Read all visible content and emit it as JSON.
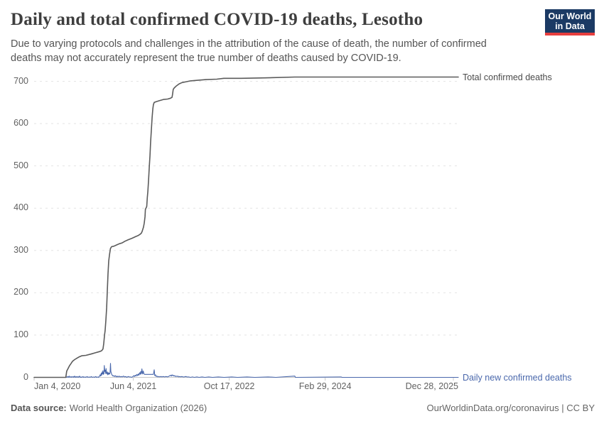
{
  "header": {
    "title": "Daily and total confirmed COVID-19 deaths, Lesotho",
    "subtitle_lines": [
      "Due to varying protocols and challenges in the attribution of the cause of death, the number of confirmed",
      "deaths may not accurately represent the true number of deaths caused by COVID-19."
    ],
    "logo": {
      "line1": "Our World",
      "line2": "in Data",
      "bg_color": "#1b3a64",
      "stripe_color": "#e63e3e"
    }
  },
  "footer": {
    "source_label": "Data source:",
    "source_value": "World Health Organization (2026)",
    "credit": "OurWorldinData.org/coronavirus | CC BY"
  },
  "chart_data": {
    "type": "line",
    "title": "Daily and total confirmed COVID-19 deaths, Lesotho",
    "xlabel": "",
    "ylabel": "",
    "ylim": [
      0,
      700
    ],
    "grid": "dashed-horizontal",
    "legend_position": "right-of-line-ends",
    "x_base_date": "2020-01-04",
    "x_end_date": "2026-01-23",
    "y_ticks": [
      0,
      100,
      200,
      300,
      400,
      500,
      600,
      700
    ],
    "x_ticks": [
      {
        "label": "Jan 4, 2020",
        "date": "2020-01-04",
        "align": "left"
      },
      {
        "label": "Jun 4, 2021",
        "date": "2021-06-04",
        "align": "center"
      },
      {
        "label": "Oct 17, 2022",
        "date": "2022-10-17",
        "align": "center"
      },
      {
        "label": "Feb 29, 2024",
        "date": "2024-02-29",
        "align": "center"
      },
      {
        "label": "Dec 28, 2025",
        "date": "2025-12-28",
        "align": "right"
      }
    ],
    "series": [
      {
        "name": "Total confirmed deaths",
        "color": "#5b5b5b",
        "points": [
          [
            "2020-01-04",
            0
          ],
          [
            "2020-06-17",
            0
          ],
          [
            "2020-06-22",
            15
          ],
          [
            "2020-06-28",
            20
          ],
          [
            "2020-07-07",
            28
          ],
          [
            "2020-07-15",
            33
          ],
          [
            "2020-07-22",
            38
          ],
          [
            "2020-08-02",
            42
          ],
          [
            "2020-08-13",
            45
          ],
          [
            "2020-08-24",
            48
          ],
          [
            "2020-09-08",
            51
          ],
          [
            "2020-09-30",
            52
          ],
          [
            "2020-10-26",
            55
          ],
          [
            "2020-11-18",
            58
          ],
          [
            "2020-12-10",
            61
          ],
          [
            "2020-12-21",
            63
          ],
          [
            "2020-12-28",
            67
          ],
          [
            "2021-01-01",
            80
          ],
          [
            "2021-01-05",
            100
          ],
          [
            "2021-01-08",
            110
          ],
          [
            "2021-01-12",
            135
          ],
          [
            "2021-01-16",
            165
          ],
          [
            "2021-01-19",
            200
          ],
          [
            "2021-01-23",
            245
          ],
          [
            "2021-01-27",
            275
          ],
          [
            "2021-01-31",
            290
          ],
          [
            "2021-02-05",
            305
          ],
          [
            "2021-02-11",
            309
          ],
          [
            "2021-02-22",
            310
          ],
          [
            "2021-03-09",
            313
          ],
          [
            "2021-03-23",
            316
          ],
          [
            "2021-04-07",
            318
          ],
          [
            "2021-04-22",
            322
          ],
          [
            "2021-05-07",
            325
          ],
          [
            "2021-05-29",
            329
          ],
          [
            "2021-06-17",
            333
          ],
          [
            "2021-06-28",
            335
          ],
          [
            "2021-07-09",
            338
          ],
          [
            "2021-07-16",
            341
          ],
          [
            "2021-07-20",
            345
          ],
          [
            "2021-07-27",
            355
          ],
          [
            "2021-07-31",
            365
          ],
          [
            "2021-08-04",
            380
          ],
          [
            "2021-08-06",
            397
          ],
          [
            "2021-08-10",
            401
          ],
          [
            "2021-08-13",
            404
          ],
          [
            "2021-08-16",
            425
          ],
          [
            "2021-08-19",
            440
          ],
          [
            "2021-08-23",
            470
          ],
          [
            "2021-08-26",
            495
          ],
          [
            "2021-08-30",
            525
          ],
          [
            "2021-09-02",
            555
          ],
          [
            "2021-09-06",
            585
          ],
          [
            "2021-09-10",
            615
          ],
          [
            "2021-09-14",
            635
          ],
          [
            "2021-09-17",
            645
          ],
          [
            "2021-09-21",
            650
          ],
          [
            "2021-10-02",
            652
          ],
          [
            "2021-10-17",
            654
          ],
          [
            "2021-11-08",
            657
          ],
          [
            "2021-11-30",
            658
          ],
          [
            "2021-12-15",
            660
          ],
          [
            "2021-12-23",
            662
          ],
          [
            "2021-12-26",
            670
          ],
          [
            "2021-12-29",
            681
          ],
          [
            "2022-01-03",
            684
          ],
          [
            "2022-01-14",
            689
          ],
          [
            "2022-01-29",
            694
          ],
          [
            "2022-02-13",
            697
          ],
          [
            "2022-03-07",
            699
          ],
          [
            "2022-03-29",
            701
          ],
          [
            "2022-04-24",
            702
          ],
          [
            "2022-06-18",
            704
          ],
          [
            "2022-08-13",
            705
          ],
          [
            "2022-09-19",
            707
          ],
          [
            "2022-12-19",
            707
          ],
          [
            "2023-04-18",
            708
          ],
          [
            "2023-09-24",
            710
          ],
          [
            "2024-02-12",
            710
          ],
          [
            "2024-12-08",
            710
          ],
          [
            "2025-10-04",
            710
          ],
          [
            "2026-01-23",
            710
          ]
        ]
      },
      {
        "name": "Daily new confirmed deaths",
        "color": "#4a68ac",
        "points": [
          [
            "2020-01-04",
            0
          ],
          [
            "2020-06-18",
            0
          ],
          [
            "2020-06-20",
            1
          ],
          [
            "2020-06-22",
            0
          ],
          [
            "2020-06-27",
            2
          ],
          [
            "2020-06-30",
            0
          ],
          [
            "2020-07-05",
            3
          ],
          [
            "2020-07-08",
            0
          ],
          [
            "2020-07-12",
            1
          ],
          [
            "2020-07-15",
            2
          ],
          [
            "2020-07-18",
            0
          ],
          [
            "2020-07-25",
            2
          ],
          [
            "2020-07-28",
            0
          ],
          [
            "2020-08-02",
            3
          ],
          [
            "2020-08-05",
            0
          ],
          [
            "2020-08-11",
            2
          ],
          [
            "2020-08-14",
            0
          ],
          [
            "2020-08-19",
            2
          ],
          [
            "2020-08-22",
            0
          ],
          [
            "2020-08-28",
            3
          ],
          [
            "2020-08-31",
            0
          ],
          [
            "2020-09-05",
            1
          ],
          [
            "2020-09-08",
            0
          ],
          [
            "2020-09-15",
            2
          ],
          [
            "2020-09-18",
            0
          ],
          [
            "2020-09-26",
            1
          ],
          [
            "2020-09-29",
            0
          ],
          [
            "2020-10-07",
            2
          ],
          [
            "2020-10-10",
            0
          ],
          [
            "2020-10-18",
            1
          ],
          [
            "2020-10-21",
            0
          ],
          [
            "2020-10-29",
            2
          ],
          [
            "2020-11-01",
            0
          ],
          [
            "2020-11-10",
            1
          ],
          [
            "2020-11-13",
            0
          ],
          [
            "2020-11-21",
            2
          ],
          [
            "2020-11-24",
            0
          ],
          [
            "2020-12-02",
            1
          ],
          [
            "2020-12-05",
            0
          ],
          [
            "2020-12-10",
            3
          ],
          [
            "2020-12-13",
            6
          ],
          [
            "2020-12-16",
            3
          ],
          [
            "2020-12-19",
            10
          ],
          [
            "2020-12-21",
            5
          ],
          [
            "2020-12-24",
            13
          ],
          [
            "2020-12-26",
            8
          ],
          [
            "2020-12-28",
            16
          ],
          [
            "2020-12-30",
            7
          ],
          [
            "2021-01-02",
            9
          ],
          [
            "2021-01-04",
            28
          ],
          [
            "2021-01-06",
            14
          ],
          [
            "2021-01-09",
            17
          ],
          [
            "2021-01-11",
            9
          ],
          [
            "2021-01-13",
            21
          ],
          [
            "2021-01-15",
            11
          ],
          [
            "2021-01-17",
            8
          ],
          [
            "2021-01-20",
            13
          ],
          [
            "2021-01-22",
            6
          ],
          [
            "2021-01-25",
            11
          ],
          [
            "2021-01-27",
            7
          ],
          [
            "2021-01-29",
            10
          ],
          [
            "2021-02-01",
            8
          ],
          [
            "2021-02-03",
            12
          ],
          [
            "2021-02-05",
            33
          ],
          [
            "2021-02-07",
            14
          ],
          [
            "2021-02-10",
            9
          ],
          [
            "2021-02-12",
            6
          ],
          [
            "2021-02-15",
            5
          ],
          [
            "2021-02-18",
            3
          ],
          [
            "2021-02-22",
            4
          ],
          [
            "2021-02-26",
            2
          ],
          [
            "2021-03-03",
            4
          ],
          [
            "2021-03-07",
            1
          ],
          [
            "2021-03-12",
            3
          ],
          [
            "2021-03-16",
            1
          ],
          [
            "2021-03-22",
            3
          ],
          [
            "2021-03-27",
            1
          ],
          [
            "2021-04-02",
            2
          ],
          [
            "2021-04-07",
            1
          ],
          [
            "2021-04-14",
            3
          ],
          [
            "2021-04-19",
            1
          ],
          [
            "2021-04-26",
            2
          ],
          [
            "2021-05-01",
            0
          ],
          [
            "2021-05-08",
            2
          ],
          [
            "2021-05-14",
            1
          ],
          [
            "2021-05-21",
            1
          ],
          [
            "2021-05-26",
            0
          ],
          [
            "2021-06-02",
            2
          ],
          [
            "2021-06-06",
            4
          ],
          [
            "2021-06-10",
            2
          ],
          [
            "2021-06-14",
            5
          ],
          [
            "2021-06-18",
            3
          ],
          [
            "2021-06-22",
            7
          ],
          [
            "2021-06-26",
            4
          ],
          [
            "2021-06-30",
            8
          ],
          [
            "2021-07-03",
            5
          ],
          [
            "2021-07-07",
            11
          ],
          [
            "2021-07-10",
            7
          ],
          [
            "2021-07-13",
            14
          ],
          [
            "2021-07-16",
            8
          ],
          [
            "2021-07-19",
            20
          ],
          [
            "2021-07-21",
            12
          ],
          [
            "2021-07-23",
            8
          ],
          [
            "2021-07-26",
            15
          ],
          [
            "2021-07-29",
            9
          ],
          [
            "2021-08-01",
            7
          ],
          [
            "2021-08-08",
            7
          ],
          [
            "2021-08-15",
            7
          ],
          [
            "2021-08-22",
            7
          ],
          [
            "2021-08-29",
            7
          ],
          [
            "2021-09-05",
            7
          ],
          [
            "2021-09-12",
            7
          ],
          [
            "2021-09-17",
            7
          ],
          [
            "2021-09-21",
            18
          ],
          [
            "2021-09-24",
            4
          ],
          [
            "2021-09-28",
            6
          ],
          [
            "2021-10-01",
            2
          ],
          [
            "2021-10-06",
            3
          ],
          [
            "2021-10-10",
            1
          ],
          [
            "2021-10-15",
            2
          ],
          [
            "2021-10-20",
            1
          ],
          [
            "2021-10-26",
            2
          ],
          [
            "2021-10-31",
            1
          ],
          [
            "2021-11-07",
            2
          ],
          [
            "2021-11-14",
            1
          ],
          [
            "2021-11-22",
            2
          ],
          [
            "2021-11-29",
            1
          ],
          [
            "2021-12-08",
            3
          ],
          [
            "2021-12-15",
            5
          ],
          [
            "2021-12-19",
            3
          ],
          [
            "2021-12-23",
            6
          ],
          [
            "2021-12-26",
            4
          ],
          [
            "2021-12-30",
            5
          ],
          [
            "2022-01-02",
            3
          ],
          [
            "2022-01-06",
            4
          ],
          [
            "2022-01-10",
            2
          ],
          [
            "2022-01-14",
            3
          ],
          [
            "2022-01-18",
            2
          ],
          [
            "2022-01-23",
            3
          ],
          [
            "2022-01-27",
            1
          ],
          [
            "2022-02-01",
            2
          ],
          [
            "2022-02-06",
            1
          ],
          [
            "2022-02-12",
            2
          ],
          [
            "2022-02-18",
            1
          ],
          [
            "2022-02-25",
            1
          ],
          [
            "2022-03-04",
            2
          ],
          [
            "2022-03-11",
            1
          ],
          [
            "2022-03-20",
            1
          ],
          [
            "2022-03-29",
            0
          ],
          [
            "2022-04-08",
            1
          ],
          [
            "2022-04-18",
            0
          ],
          [
            "2022-05-01",
            1
          ],
          [
            "2022-05-13",
            0
          ],
          [
            "2022-05-28",
            1
          ],
          [
            "2022-06-12",
            0
          ],
          [
            "2022-07-02",
            1
          ],
          [
            "2022-07-22",
            0
          ],
          [
            "2022-08-21",
            1
          ],
          [
            "2022-09-20",
            0
          ],
          [
            "2022-10-30",
            1
          ],
          [
            "2022-11-29",
            0
          ],
          [
            "2023-01-18",
            1
          ],
          [
            "2023-02-27",
            0
          ],
          [
            "2023-05-08",
            1
          ],
          [
            "2023-06-17",
            0
          ],
          [
            "2023-09-24",
            3
          ],
          [
            "2023-09-27",
            0
          ],
          [
            "2024-05-22",
            1
          ],
          [
            "2024-05-27",
            0
          ],
          [
            "2026-01-23",
            0
          ]
        ]
      }
    ]
  }
}
